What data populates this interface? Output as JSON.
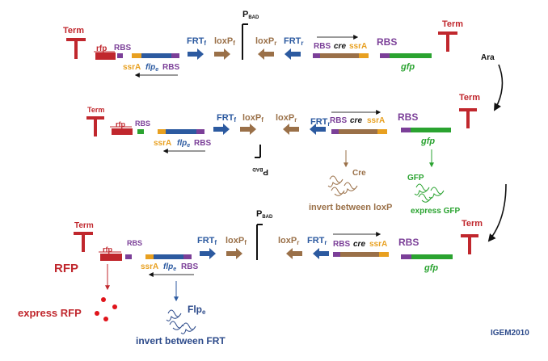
{
  "labels": {
    "term": "Term",
    "rfp": "rfp",
    "rbs": "RBS",
    "ssra": "ssrA",
    "flpe": "flp",
    "flpe_sub": "e",
    "frt": "FRT",
    "frt_f_sub": "f",
    "frt_r_sub": "r",
    "loxp": "loxP",
    "loxp_f_sub": "f",
    "loxp_r_sub": "r",
    "pbad": "P",
    "pbad_sub": "BAD",
    "cre": "cre",
    "gfp": "gfp",
    "ara": "Ara",
    "cre_protein": "Cre",
    "invert_loxp": "invert between loxP",
    "gfp_protein": "GFP",
    "express_gfp": "express GFP",
    "rfp_big": "RFP",
    "express_rfp": "express RFP",
    "flp_protein": "Flp",
    "flp_protein_sub": "e",
    "invert_frt": "invert between FRT",
    "credit": "IGEM2010"
  },
  "colors": {
    "term": "#c0272d",
    "rbs": "#7b3f98",
    "frt": "#2c5aa0",
    "loxp": "#9a7048",
    "ssra": "#e8a020",
    "gfp": "#2aa330",
    "rfp": "#c0272d"
  }
}
